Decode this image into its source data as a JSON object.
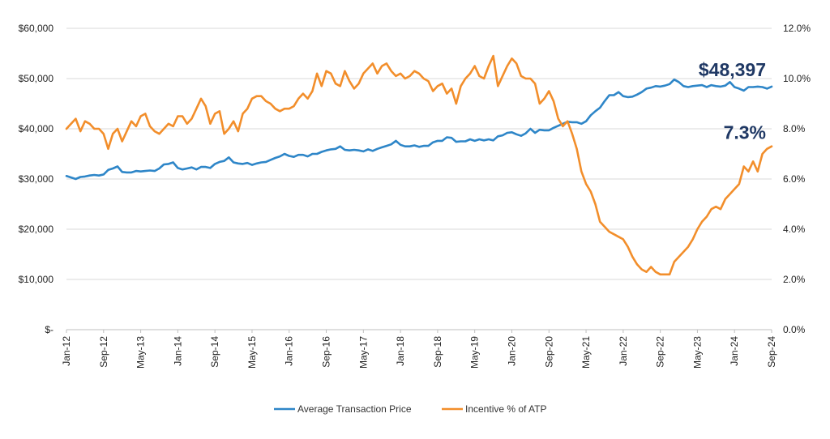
{
  "chart_data": {
    "type": "line",
    "title": "",
    "xlabel": "",
    "ylabel": "",
    "x": [
      "Jan-12",
      "Feb-12",
      "Mar-12",
      "Apr-12",
      "May-12",
      "Jun-12",
      "Jul-12",
      "Aug-12",
      "Sep-12",
      "Oct-12",
      "Nov-12",
      "Dec-12",
      "Jan-13",
      "Feb-13",
      "Mar-13",
      "Apr-13",
      "May-13",
      "Jun-13",
      "Jul-13",
      "Aug-13",
      "Sep-13",
      "Oct-13",
      "Nov-13",
      "Dec-13",
      "Jan-14",
      "Feb-14",
      "Mar-14",
      "Apr-14",
      "May-14",
      "Jun-14",
      "Jul-14",
      "Aug-14",
      "Sep-14",
      "Oct-14",
      "Nov-14",
      "Dec-14",
      "Jan-15",
      "Feb-15",
      "Mar-15",
      "Apr-15",
      "May-15",
      "Jun-15",
      "Jul-15",
      "Aug-15",
      "Sep-15",
      "Oct-15",
      "Nov-15",
      "Dec-15",
      "Jan-16",
      "Feb-16",
      "Mar-16",
      "Apr-16",
      "May-16",
      "Jun-16",
      "Jul-16",
      "Aug-16",
      "Sep-16",
      "Oct-16",
      "Nov-16",
      "Dec-16",
      "Jan-17",
      "Feb-17",
      "Mar-17",
      "Apr-17",
      "May-17",
      "Jun-17",
      "Jul-17",
      "Aug-17",
      "Sep-17",
      "Oct-17",
      "Nov-17",
      "Dec-17",
      "Jan-18",
      "Feb-18",
      "Mar-18",
      "Apr-18",
      "May-18",
      "Jun-18",
      "Jul-18",
      "Aug-18",
      "Sep-18",
      "Oct-18",
      "Nov-18",
      "Dec-18",
      "Jan-19",
      "Feb-19",
      "Mar-19",
      "Apr-19",
      "May-19",
      "Jun-19",
      "Jul-19",
      "Aug-19",
      "Sep-19",
      "Oct-19",
      "Nov-19",
      "Dec-19",
      "Jan-20",
      "Feb-20",
      "Mar-20",
      "Apr-20",
      "May-20",
      "Jun-20",
      "Jul-20",
      "Aug-20",
      "Sep-20",
      "Oct-20",
      "Nov-20",
      "Dec-20",
      "Jan-21",
      "Feb-21",
      "Mar-21",
      "Apr-21",
      "May-21",
      "Jun-21",
      "Jul-21",
      "Aug-21",
      "Sep-21",
      "Oct-21",
      "Nov-21",
      "Dec-21",
      "Jan-22",
      "Feb-22",
      "Mar-22",
      "Apr-22",
      "May-22",
      "Jun-22",
      "Jul-22",
      "Aug-22",
      "Sep-22",
      "Oct-22",
      "Nov-22",
      "Dec-22",
      "Jan-23",
      "Feb-23",
      "Mar-23",
      "Apr-23",
      "May-23",
      "Jun-23",
      "Jul-23",
      "Aug-23",
      "Sep-23",
      "Oct-23",
      "Nov-23",
      "Dec-23",
      "Jan-24",
      "Feb-24",
      "Mar-24",
      "Apr-24",
      "May-24",
      "Jun-24",
      "Jul-24",
      "Aug-24",
      "Sep-24"
    ],
    "x_tick_labels": [
      "Jan-12",
      "Sep-12",
      "May-13",
      "Jan-14",
      "Sep-14",
      "May-15",
      "Jan-16",
      "Sep-16",
      "May-17",
      "Jan-18",
      "Sep-18",
      "May-19",
      "Jan-20",
      "Sep-20",
      "May-21",
      "Jan-22",
      "Sep-22",
      "May-23",
      "Jan-24",
      "Sep-24"
    ],
    "y_left": {
      "range": [
        0,
        60000
      ],
      "ticks": [
        0,
        10000,
        20000,
        30000,
        40000,
        50000,
        60000
      ],
      "tick_labels": [
        "$-",
        "$10,000",
        "$20,000",
        "$30,000",
        "$40,000",
        "$50,000",
        "$60,000"
      ]
    },
    "y_right": {
      "range": [
        0,
        12
      ],
      "ticks": [
        0,
        2,
        4,
        6,
        8,
        10,
        12
      ],
      "tick_labels": [
        "0.0%",
        "2.0%",
        "4.0%",
        "6.0%",
        "8.0%",
        "10.0%",
        "12.0%"
      ]
    },
    "grid": "horizontal",
    "legend_placement": "bottom",
    "series": [
      {
        "name": "Average Transaction Price",
        "axis": "left",
        "color": "#2E86C8",
        "values": [
          30600,
          30300,
          30000,
          30400,
          30500,
          30700,
          30800,
          30700,
          30900,
          31800,
          32100,
          32500,
          31400,
          31300,
          31300,
          31600,
          31500,
          31600,
          31700,
          31600,
          32100,
          32900,
          33000,
          33300,
          32200,
          31900,
          32100,
          32300,
          31900,
          32400,
          32400,
          32200,
          33000,
          33400,
          33600,
          34300,
          33300,
          33100,
          33000,
          33200,
          32800,
          33100,
          33300,
          33400,
          33800,
          34200,
          34500,
          35000,
          34600,
          34400,
          34800,
          34800,
          34500,
          35000,
          35000,
          35400,
          35700,
          35900,
          36000,
          36500,
          35800,
          35700,
          35800,
          35700,
          35500,
          35900,
          35600,
          36000,
          36300,
          36600,
          36900,
          37600,
          36800,
          36500,
          36500,
          36700,
          36400,
          36600,
          36600,
          37300,
          37600,
          37600,
          38300,
          38200,
          37400,
          37500,
          37500,
          37900,
          37600,
          37900,
          37700,
          37900,
          37700,
          38500,
          38700,
          39200,
          39300,
          38900,
          38600,
          39100,
          40000,
          39200,
          39800,
          39700,
          39700,
          40200,
          40600,
          41000,
          41400,
          41300,
          41300,
          41000,
          41500,
          42700,
          43500,
          44200,
          45500,
          46700,
          46700,
          47300,
          46500,
          46300,
          46400,
          46800,
          47300,
          48000,
          48200,
          48500,
          48400,
          48600,
          48900,
          49800,
          49300,
          48500,
          48300,
          48500,
          48600,
          48700,
          48300,
          48700,
          48500,
          48400,
          48600,
          49300,
          48300,
          48000,
          47600,
          48300,
          48300,
          48400,
          48300,
          48000,
          48397
        ]
      },
      {
        "name": "Incentive % of ATP",
        "axis": "right",
        "color": "#F28E2B",
        "values": [
          8.0,
          8.2,
          8.4,
          7.9,
          8.3,
          8.2,
          8.0,
          8.0,
          7.8,
          7.2,
          7.8,
          8.0,
          7.5,
          7.9,
          8.3,
          8.1,
          8.5,
          8.6,
          8.1,
          7.9,
          7.8,
          8.0,
          8.2,
          8.1,
          8.5,
          8.5,
          8.2,
          8.4,
          8.8,
          9.2,
          8.9,
          8.2,
          8.6,
          8.7,
          7.8,
          8.0,
          8.3,
          7.9,
          8.6,
          8.8,
          9.2,
          9.3,
          9.3,
          9.1,
          9.0,
          8.8,
          8.7,
          8.8,
          8.8,
          8.9,
          9.2,
          9.4,
          9.2,
          9.5,
          10.2,
          9.7,
          10.3,
          10.2,
          9.8,
          9.7,
          10.3,
          9.9,
          9.6,
          9.8,
          10.2,
          10.4,
          10.6,
          10.2,
          10.5,
          10.6,
          10.3,
          10.1,
          10.2,
          10.0,
          10.1,
          10.3,
          10.2,
          10.0,
          9.9,
          9.5,
          9.7,
          9.8,
          9.4,
          9.6,
          9.0,
          9.7,
          10.0,
          10.2,
          10.5,
          10.1,
          10.0,
          10.5,
          10.9,
          9.7,
          10.1,
          10.5,
          10.8,
          10.6,
          10.1,
          10.0,
          10.0,
          9.8,
          9.0,
          9.2,
          9.5,
          9.1,
          8.4,
          8.1,
          8.3,
          7.8,
          7.2,
          6.3,
          5.8,
          5.5,
          5.0,
          4.3,
          4.1,
          3.9,
          3.8,
          3.7,
          3.6,
          3.3,
          2.9,
          2.6,
          2.4,
          2.3,
          2.5,
          2.3,
          2.2,
          2.2,
          2.2,
          2.7,
          2.9,
          3.1,
          3.3,
          3.6,
          4.0,
          4.3,
          4.5,
          4.8,
          4.9,
          4.8,
          5.2,
          5.4,
          5.6,
          5.8,
          6.5,
          6.3,
          6.7,
          6.3,
          7.0,
          7.2,
          7.3
        ]
      }
    ],
    "annotations": [
      {
        "text": "$48,397",
        "series": "Average Transaction Price"
      },
      {
        "text": "7.3%",
        "series": "Incentive % of ATP"
      }
    ]
  }
}
